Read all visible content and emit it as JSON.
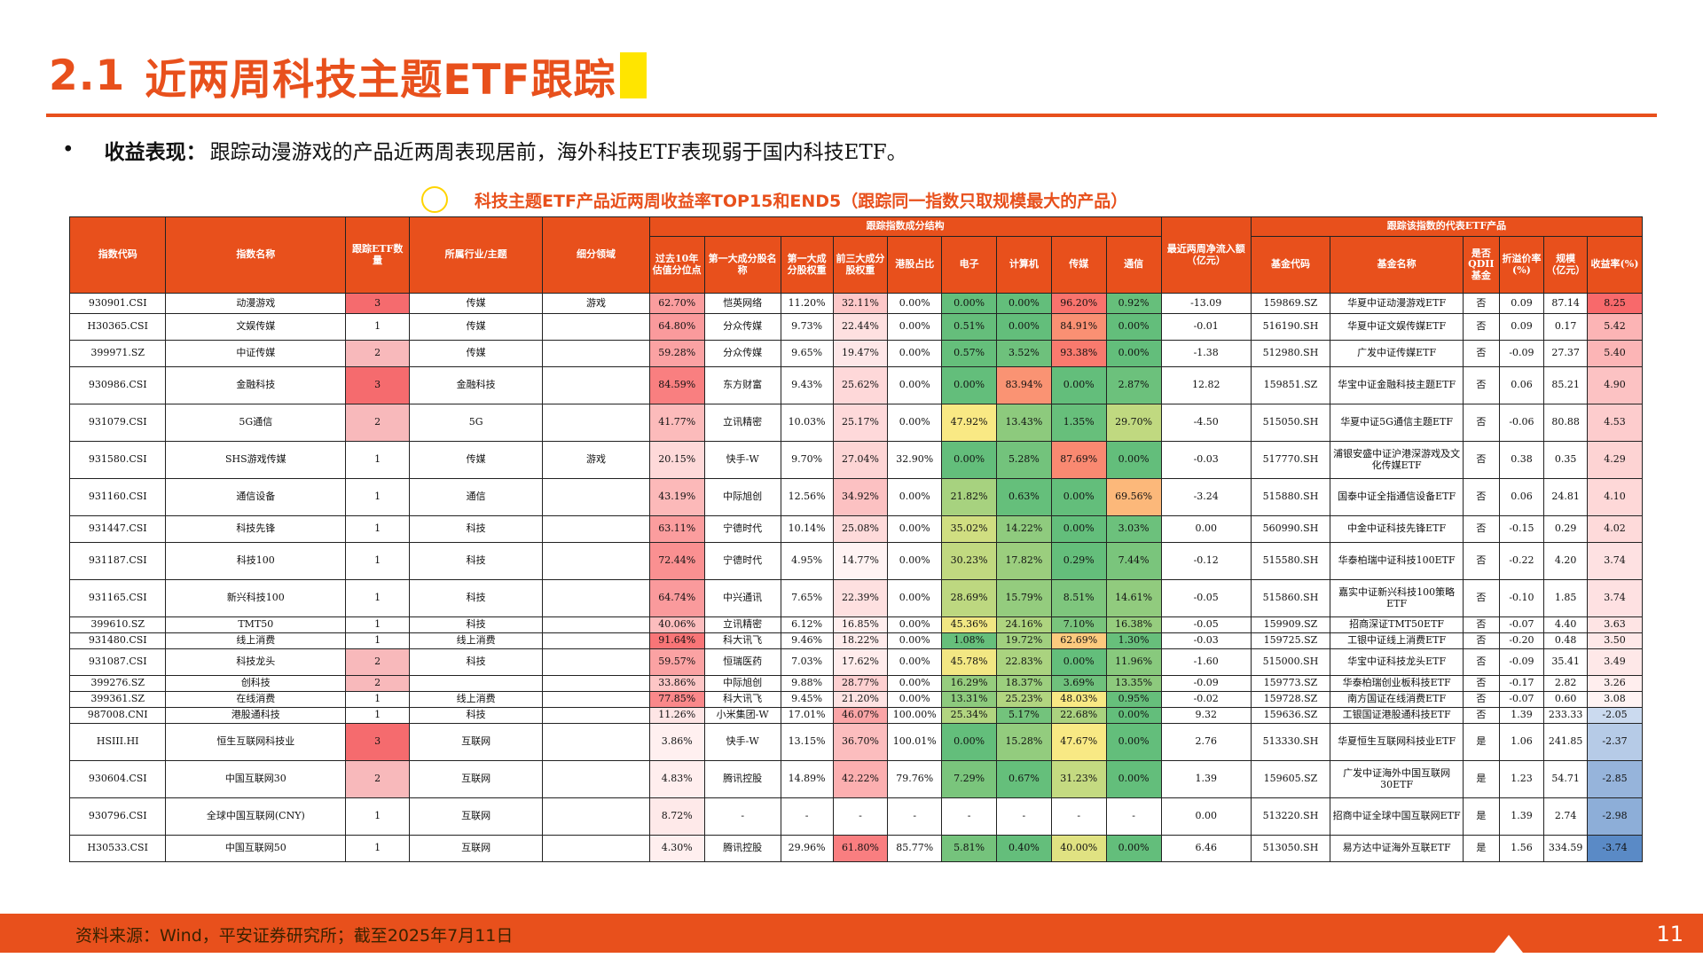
{
  "title": {
    "num": "2.1",
    "text": "近两周科技主题ETF跟踪"
  },
  "bullet": {
    "label": "收益表现：",
    "text": "跟踪动漫游戏的产品近两周表现居前，海外科技ETF表现弱于国内科技ETF。"
  },
  "caption": "科技主题ETF产品近两周收益率TOP15和END5（跟踪同一指数只取规模最大的产品）",
  "table": {
    "group_headers": {
      "index_structure": "跟踪指数成分结构",
      "rep_etf": "跟踪该指数的代表ETF产品"
    },
    "headers": [
      "指数代码",
      "指数名称",
      "跟踪ETF数量",
      "所属行业/主题",
      "细分领域",
      "过去10年估值分位点",
      "第一大成分股名称",
      "第一大成分股权重",
      "前三大成分股权重",
      "港股占比",
      "电子",
      "计算机",
      "传媒",
      "通信",
      "最近两周净流入额（亿元）",
      "基金代码",
      "基金名称",
      "是否QDII基金",
      "折溢价率(%)",
      "规模（亿元）",
      "收益率(%)"
    ],
    "rows": [
      [
        "930901.CSI",
        "动漫游戏",
        "3",
        "传媒",
        "游戏",
        "62.70%",
        "恺英网络",
        "11.20%",
        "32.11%",
        "0.00%",
        "0.00%",
        "0.00%",
        "96.20%",
        "0.92%",
        "-13.09",
        "159869.SZ",
        "华夏中证动漫游戏ETF",
        "否",
        "0.09",
        "87.14",
        "8.25"
      ],
      [
        "H30365.CSI",
        "文娱传媒",
        "1",
        "传媒",
        "",
        "64.80%",
        "分众传媒",
        "9.73%",
        "22.44%",
        "0.00%",
        "0.51%",
        "0.00%",
        "84.91%",
        "0.00%",
        "-0.01",
        "516190.SH",
        "华夏中证文娱传媒ETF",
        "否",
        "0.09",
        "0.17",
        "5.42"
      ],
      [
        "399971.SZ",
        "中证传媒",
        "2",
        "传媒",
        "",
        "59.28%",
        "分众传媒",
        "9.65%",
        "19.47%",
        "0.00%",
        "0.57%",
        "3.52%",
        "93.38%",
        "0.00%",
        "-1.38",
        "512980.SH",
        "广发中证传媒ETF",
        "否",
        "-0.09",
        "27.37",
        "5.40"
      ],
      [
        "930986.CSI",
        "金融科技",
        "3",
        "金融科技",
        "",
        "84.59%",
        "东方财富",
        "9.43%",
        "25.62%",
        "0.00%",
        "0.00%",
        "83.94%",
        "0.00%",
        "2.87%",
        "12.82",
        "159851.SZ",
        "华宝中证金融科技主题ETF",
        "否",
        "0.06",
        "85.21",
        "4.90"
      ],
      [
        "931079.CSI",
        "5G通信",
        "2",
        "5G",
        "",
        "41.77%",
        "立讯精密",
        "10.03%",
        "25.17%",
        "0.00%",
        "47.92%",
        "13.43%",
        "1.35%",
        "29.70%",
        "-4.50",
        "515050.SH",
        "华夏中证5G通信主题ETF",
        "否",
        "-0.06",
        "80.88",
        "4.53"
      ],
      [
        "931580.CSI",
        "SHS游戏传媒",
        "1",
        "传媒",
        "游戏",
        "20.15%",
        "快手-W",
        "9.70%",
        "27.04%",
        "32.90%",
        "0.00%",
        "5.28%",
        "87.69%",
        "0.00%",
        "-0.03",
        "517770.SH",
        "浦银安盛中证沪港深游戏及文化传媒ETF",
        "否",
        "0.38",
        "0.35",
        "4.29"
      ],
      [
        "931160.CSI",
        "通信设备",
        "1",
        "通信",
        "",
        "43.19%",
        "中际旭创",
        "12.56%",
        "34.92%",
        "0.00%",
        "21.82%",
        "0.63%",
        "0.00%",
        "69.56%",
        "-3.24",
        "515880.SH",
        "国泰中证全指通信设备ETF",
        "否",
        "0.06",
        "24.81",
        "4.10"
      ],
      [
        "931447.CSI",
        "科技先锋",
        "1",
        "科技",
        "",
        "63.11%",
        "宁德时代",
        "10.14%",
        "25.08%",
        "0.00%",
        "35.02%",
        "14.22%",
        "0.00%",
        "3.03%",
        "0.00",
        "560990.SH",
        "中金中证科技先锋ETF",
        "否",
        "-0.15",
        "0.29",
        "4.02"
      ],
      [
        "931187.CSI",
        "科技100",
        "1",
        "科技",
        "",
        "72.44%",
        "宁德时代",
        "4.95%",
        "14.77%",
        "0.00%",
        "30.23%",
        "17.82%",
        "0.29%",
        "7.44%",
        "-0.12",
        "515580.SH",
        "华泰柏瑞中证科技100ETF",
        "否",
        "-0.22",
        "4.20",
        "3.74"
      ],
      [
        "931165.CSI",
        "新兴科技100",
        "1",
        "科技",
        "",
        "64.74%",
        "中兴通讯",
        "7.65%",
        "22.39%",
        "0.00%",
        "28.69%",
        "15.79%",
        "8.51%",
        "14.61%",
        "-0.05",
        "515860.SH",
        "嘉实中证新兴科技100策略ETF",
        "否",
        "-0.10",
        "1.85",
        "3.74"
      ],
      [
        "399610.SZ",
        "TMT50",
        "1",
        "科技",
        "",
        "40.06%",
        "立讯精密",
        "6.12%",
        "16.85%",
        "0.00%",
        "45.36%",
        "24.16%",
        "7.10%",
        "16.38%",
        "-0.05",
        "159909.SZ",
        "招商深证TMT50ETF",
        "否",
        "-0.07",
        "4.40",
        "3.63"
      ],
      [
        "931480.CSI",
        "线上消费",
        "1",
        "线上消费",
        "",
        "91.64%",
        "科大讯飞",
        "9.46%",
        "18.22%",
        "0.00%",
        "1.08%",
        "19.72%",
        "62.69%",
        "1.30%",
        "-0.03",
        "159725.SZ",
        "工银中证线上消费ETF",
        "否",
        "-0.20",
        "0.48",
        "3.50"
      ],
      [
        "931087.CSI",
        "科技龙头",
        "2",
        "科技",
        "",
        "59.57%",
        "恒瑞医药",
        "7.03%",
        "17.62%",
        "0.00%",
        "45.78%",
        "22.83%",
        "0.00%",
        "11.96%",
        "-1.60",
        "515000.SH",
        "华宝中证科技龙头ETF",
        "否",
        "-0.09",
        "35.41",
        "3.49"
      ],
      [
        "399276.SZ",
        "创科技",
        "2",
        "",
        "",
        "33.86%",
        "中际旭创",
        "9.88%",
        "28.77%",
        "0.00%",
        "16.29%",
        "18.37%",
        "3.69%",
        "13.35%",
        "-0.09",
        "159773.SZ",
        "华泰柏瑞创业板科技ETF",
        "否",
        "-0.17",
        "2.82",
        "3.26"
      ],
      [
        "399361.SZ",
        "在线消费",
        "1",
        "线上消费",
        "",
        "77.85%",
        "科大讯飞",
        "9.45%",
        "21.20%",
        "0.00%",
        "13.31%",
        "25.23%",
        "48.03%",
        "0.95%",
        "-0.02",
        "159728.SZ",
        "南方国证在线消费ETF",
        "否",
        "-0.07",
        "0.60",
        "3.08"
      ],
      [
        "987008.CNI",
        "港股通科技",
        "1",
        "科技",
        "",
        "11.26%",
        "小米集团-W",
        "17.01%",
        "46.07%",
        "100.00%",
        "25.34%",
        "5.17%",
        "22.68%",
        "0.00%",
        "9.32",
        "159636.SZ",
        "工银国证港股通科技ETF",
        "否",
        "1.39",
        "233.33",
        "-2.05"
      ],
      [
        "HSIII.HI",
        "恒生互联网科技业",
        "3",
        "互联网",
        "",
        "3.86%",
        "快手-W",
        "13.15%",
        "36.70%",
        "100.01%",
        "0.00%",
        "15.28%",
        "47.67%",
        "0.00%",
        "2.76",
        "513330.SH",
        "华夏恒生互联网科技业ETF",
        "是",
        "1.06",
        "241.85",
        "-2.37"
      ],
      [
        "930604.CSI",
        "中国互联网30",
        "2",
        "互联网",
        "",
        "4.83%",
        "腾讯控股",
        "14.89%",
        "42.22%",
        "79.76%",
        "7.29%",
        "0.67%",
        "31.23%",
        "0.00%",
        "1.39",
        "159605.SZ",
        "广发中证海外中国互联网30ETF",
        "是",
        "1.23",
        "54.71",
        "-2.85"
      ],
      [
        "930796.CSI",
        "全球中国互联网(CNY)",
        "1",
        "互联网",
        "",
        "8.72%",
        "-",
        "-",
        "-",
        "-",
        "-",
        "-",
        "-",
        "-",
        "0.00",
        "513220.SH",
        "招商中证全球中国互联网ETF",
        "是",
        "1.39",
        "2.74",
        "-2.98"
      ],
      [
        "H30533.CSI",
        "中国互联网50",
        "1",
        "互联网",
        "",
        "4.30%",
        "腾讯控股",
        "29.96%",
        "61.80%",
        "85.77%",
        "5.81%",
        "0.40%",
        "40.00%",
        "0.00%",
        "6.46",
        "513050.SH",
        "易方达中证海外互联ETF",
        "是",
        "1.56",
        "334.59",
        "-3.74"
      ]
    ]
  },
  "footer": {
    "source": "资料来源：Wind，平安证券研究所；截至2025年7月11日",
    "page": "11"
  },
  "colors": {
    "accent": "#e8501c",
    "highlight": "#ffe500",
    "header_bg": "#e8501c"
  }
}
